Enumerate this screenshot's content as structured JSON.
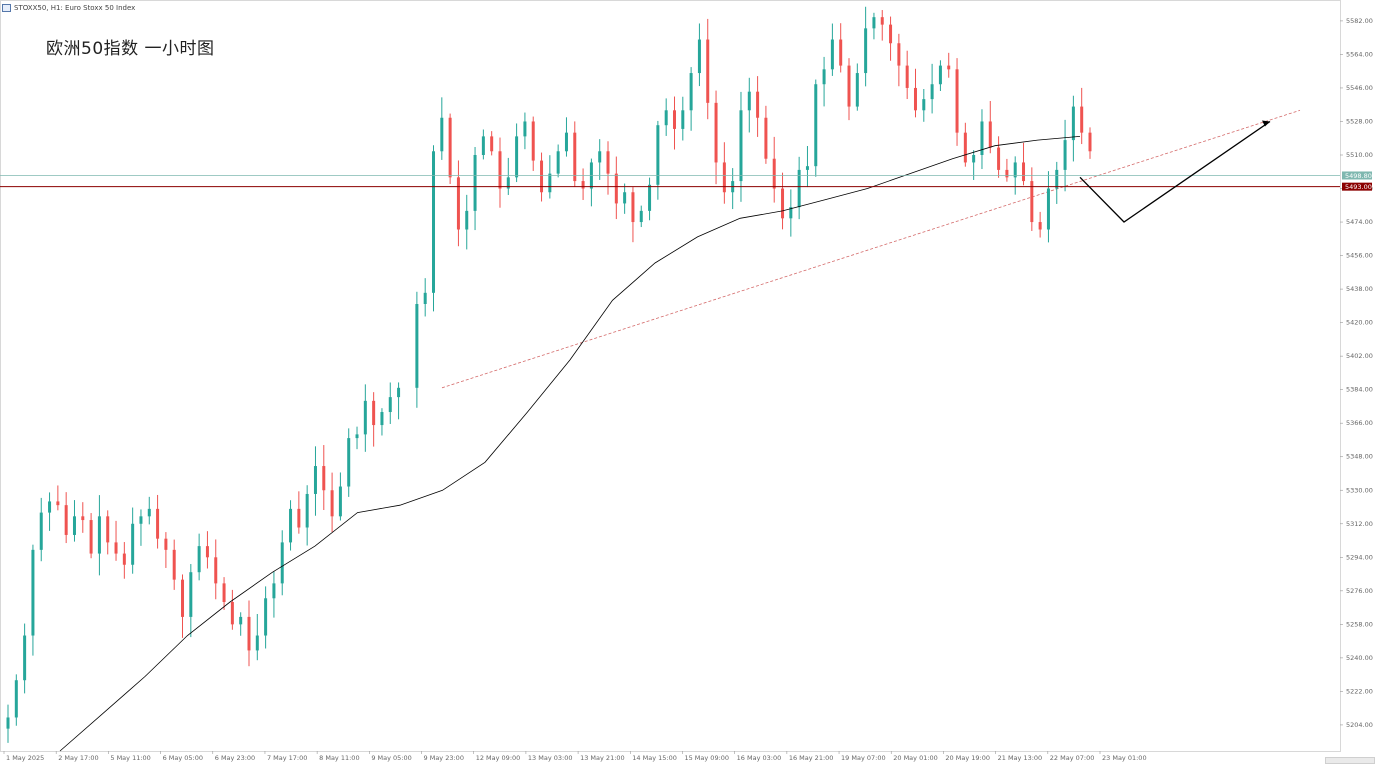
{
  "window": {
    "symbol_label": "STOXX50, H1: Euro Stoxx 50 Index",
    "title": "欧洲50指数 一小时图"
  },
  "colors": {
    "bull": "#26a69a",
    "bear": "#ef5350",
    "resistance": "#8b0000",
    "trendline": "#d46a6a",
    "ma": "#000000",
    "price_line": "#7fb8b0",
    "background": "#ffffff"
  },
  "chart_data": {
    "type": "candlestick",
    "title": "欧洲50指数 一小时图",
    "ylim": [
      5190,
      5590
    ],
    "price_axis": [
      "5582.00",
      "5564.00",
      "5546.00",
      "5528.00",
      "5510.00",
      "5492.00",
      "5474.00",
      "5456.00",
      "5438.00",
      "5420.00",
      "5402.00",
      "5384.00",
      "5366.00",
      "5348.00",
      "5330.00",
      "5312.00",
      "5294.00",
      "5276.00",
      "5258.00",
      "5240.00",
      "5222.00",
      "5204.00"
    ],
    "time_axis": [
      "1 May 2025",
      "2 May 17:00",
      "5 May 11:00",
      "6 May 05:00",
      "6 May 23:00",
      "7 May 17:00",
      "8 May 11:00",
      "9 May 05:00",
      "9 May 23:00",
      "12 May 09:00",
      "13 May 03:00",
      "13 May 21:00",
      "14 May 15:00",
      "15 May 09:00",
      "16 May 03:00",
      "16 May 21:00",
      "19 May 07:00",
      "20 May 01:00",
      "20 May 19:00",
      "21 May 13:00",
      "22 May 07:00",
      "23 May 01:00"
    ],
    "current_price": {
      "bid": "5498.50",
      "ask": "5498.80"
    },
    "resistance_level": {
      "price": 5493.0,
      "label": "5493.00"
    },
    "close_points": [
      5208,
      5228,
      5252,
      5298,
      5318,
      5324,
      5322,
      5306,
      5316,
      5314,
      5296,
      5316,
      5302,
      5296,
      5290,
      5312,
      5316,
      5320,
      5304,
      5298,
      5282,
      5262,
      5286,
      5300,
      5294,
      5280,
      5270,
      5258,
      5262,
      5244,
      5252,
      5272,
      5280,
      5302,
      5320,
      5310,
      5328,
      5343,
      5330,
      5316,
      5332,
      5358,
      5360,
      5378,
      5365,
      5372,
      5380,
      5385,
      5430,
      5436,
      5512,
      5530,
      5498,
      5470,
      5480,
      5510,
      5520,
      5512,
      5492,
      5498,
      5520,
      5528,
      5507,
      5490,
      5500,
      5512,
      5522,
      5496,
      5492,
      5506,
      5512,
      5500,
      5484,
      5490,
      5474,
      5480,
      5494,
      5526,
      5534,
      5524,
      5534,
      5554,
      5572,
      5538,
      5506,
      5490,
      5496,
      5534,
      5544,
      5530,
      5508,
      5492,
      5476,
      5482,
      5502,
      5504,
      5548,
      5556,
      5572,
      5558,
      5536,
      5554,
      5578,
      5584,
      5580,
      5570,
      5558,
      5546,
      5534,
      5540,
      5548,
      5558,
      5556,
      5522,
      5506,
      5510,
      5528,
      5514,
      5502,
      5498,
      5506,
      5496,
      5474,
      5470,
      5492,
      5502,
      5518,
      5536,
      5522,
      5512
    ],
    "ma_points": [
      5190,
      5210,
      5230,
      5252,
      5270,
      5286,
      5300,
      5318,
      5322,
      5330,
      5345,
      5372,
      5400,
      5432,
      5452,
      5466,
      5476,
      5480,
      5486,
      5492,
      5500,
      5508,
      5515,
      5518,
      5520
    ],
    "annotations": [
      {
        "type": "trendline",
        "from": [
          "9 May 05:00",
          5385
        ],
        "to": [
          "23 May 10:00",
          5534
        ],
        "style": "dashed-red"
      },
      {
        "type": "projection-arrow",
        "points": [
          [
            "23 May 01:00",
            5498
          ],
          [
            "23 May 04:00",
            5474
          ],
          [
            "23 May 08:00",
            5528
          ]
        ],
        "style": "black-arrow"
      },
      {
        "type": "hline",
        "price": 5493,
        "style": "dark-red"
      },
      {
        "type": "hline",
        "price": 5499,
        "style": "teal"
      }
    ]
  }
}
